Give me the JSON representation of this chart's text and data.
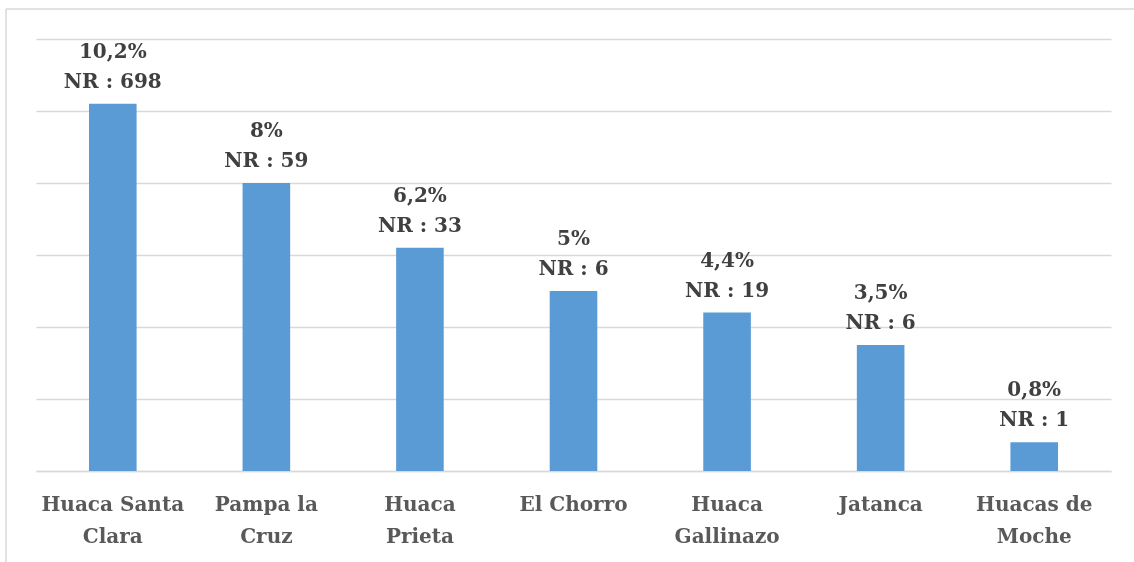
{
  "chart_data": {
    "type": "bar",
    "categories": [
      "Huaca Santa Clara",
      "Pampa la Cruz",
      "Huaca Prieta",
      "El Chorro",
      "Huaca Gallinazo",
      "Jatanca",
      "Huacas de Moche"
    ],
    "values": [
      10.2,
      8,
      6.2,
      5,
      4.4,
      3.5,
      0.8
    ],
    "value_labels": [
      "10,2%\nNR : 698",
      "8%\nNR : 59",
      "6,2%\nNR : 33",
      "5%\nNR : 6",
      "4,4%\nNR : 19",
      "3,5%\nNR : 6",
      "0,8%\nNR : 1"
    ],
    "color": "#5b9bd5",
    "ylim": [
      0,
      12
    ],
    "yticks": [
      {
        "value": 0,
        "label": null
      },
      {
        "value": 2,
        "label": null
      },
      {
        "value": 4,
        "label": null
      },
      {
        "value": 6,
        "label": null
      },
      {
        "value": 8,
        "label": null
      },
      {
        "value": 10,
        "label": null
      },
      {
        "value": 12,
        "label": null
      }
    ],
    "grid": "y",
    "tick_labels": "x"
  }
}
